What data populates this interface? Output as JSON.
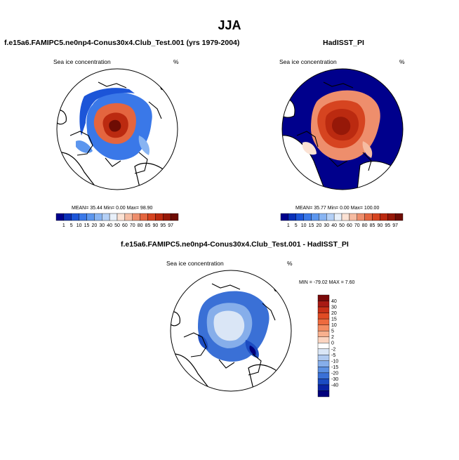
{
  "main_title": "JJA",
  "chart_data": [
    {
      "type": "heatmap",
      "name": "model",
      "title": "f.e15a6.FAMIPC5.ne0np4-Conus30x4.Club_Test.001 (yrs 1979-2004)",
      "subtitle_left": "Sea ice concentration",
      "subtitle_right": "%",
      "stats": {
        "mean_label": "MEAN=",
        "mean": "35.44",
        "min_label": "Min=",
        "min": "0.00",
        "max_label": "Max=",
        "max": "98.90"
      },
      "colorbar": {
        "levels": [
          "1",
          "5",
          "10",
          "15",
          "20",
          "30",
          "40",
          "50",
          "60",
          "70",
          "80",
          "85",
          "90",
          "95",
          "97"
        ],
        "colors": [
          "#00008c",
          "#0a30b8",
          "#1c55d8",
          "#3a78e8",
          "#5c96ee",
          "#88b4f2",
          "#b4d0f6",
          "#e8f0fa",
          "#fbe2d4",
          "#f6bca2",
          "#ee8e6c",
          "#e4653f",
          "#d64420",
          "#bb2a10",
          "#961808",
          "#6e0c04"
        ]
      }
    },
    {
      "type": "heatmap",
      "name": "obs",
      "title": "HadISST_PI",
      "subtitle_left": "Sea ice concentration",
      "subtitle_right": "%",
      "stats": {
        "mean_label": "MEAN=",
        "mean": "35.77",
        "min_label": "Min=",
        "min": "0.00",
        "max_label": "Max=",
        "max": "100.00"
      }
    },
    {
      "type": "heatmap",
      "name": "diff",
      "title": "f.e15a6.FAMIPC5.ne0np4-Conus30x4.Club_Test.001 - HadISST_PI",
      "subtitle_left": "Sea ice concentration",
      "subtitle_right": "%",
      "stats": {
        "min_label": "MIN =",
        "min": "-79.02",
        "max_label": "MAX =",
        "max": "7.60"
      },
      "colorbar": {
        "levels": [
          "40",
          "30",
          "20",
          "15",
          "10",
          "5",
          "2",
          "0",
          "-2",
          "-5",
          "-10",
          "-15",
          "-20",
          "-30",
          "-40"
        ],
        "colors": [
          "#7a0a0a",
          "#a81a14",
          "#c83018",
          "#e04b24",
          "#ee6a3e",
          "#f48c62",
          "#f8b08e",
          "#fbd4c0",
          "#ffffff",
          "#dae6f6",
          "#b0caf0",
          "#86aeea",
          "#5c90e2",
          "#3a70d6",
          "#1c4cc2",
          "#0a24a4",
          "#00007c"
        ]
      }
    }
  ]
}
